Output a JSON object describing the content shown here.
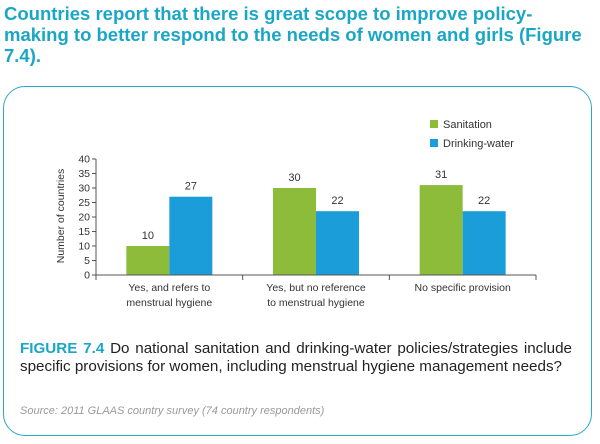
{
  "headline": "Countries report that there is great scope to improve policy-making to better respond to the needs of women and girls (Figure 7.4).",
  "caption": {
    "figure_label": "FIGURE 7.4",
    "text": "Do national sanitation and drinking-water policies/strategies include specific provisions for women, including menstrual hygiene management needs?"
  },
  "source": "Source: 2011 GLAAS country survey (74 country respondents)",
  "colors": {
    "sanitation": "#8dbb3a",
    "drinking_water": "#1b9dd9",
    "accent": "#1aa7c6"
  },
  "chart_data": {
    "type": "bar",
    "categories": [
      [
        "Yes, and refers to",
        "menstrual hygiene"
      ],
      [
        "Yes, but no reference",
        "to menstrual hygiene"
      ],
      [
        "No specific provision"
      ]
    ],
    "series": [
      {
        "name": "Sanitation",
        "values": [
          10,
          30,
          31
        ]
      },
      {
        "name": "Drinking-water",
        "values": [
          27,
          22,
          22
        ]
      }
    ],
    "ylabel": "Number of countries",
    "ylim": [
      0,
      40
    ],
    "yticks": [
      0,
      5,
      10,
      15,
      20,
      25,
      30,
      35,
      40
    ],
    "legend": "top-right",
    "grid": false
  }
}
